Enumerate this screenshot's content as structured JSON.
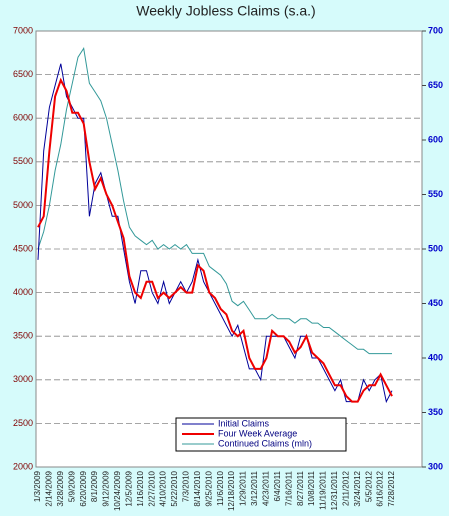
{
  "chart_data": {
    "type": "line",
    "title": "Weekly Jobless Claims (s.a.)",
    "categories": [
      "1/3/2009",
      null,
      "2/14/2009",
      null,
      "3/28/2009",
      null,
      "5/9/2009",
      null,
      "6/20/2009",
      null,
      "8/1/2009",
      null,
      "9/12/2009",
      null,
      "10/24/2009",
      null,
      "12/5/2009",
      null,
      "1/16/2010",
      null,
      "2/27/2010",
      null,
      "4/10/2010",
      null,
      "5/22/2010",
      null,
      "7/3/2010",
      null,
      "8/14/2010",
      null,
      "9/25/2010",
      null,
      "11/6/2010",
      null,
      "12/18/2010",
      null,
      "1/29/2011",
      null,
      "3/12/2011",
      null,
      "4/23/2011",
      null,
      "6/4/2011",
      null,
      "7/16/2011",
      null,
      "8/27/2011",
      null,
      "10/8/2011",
      null,
      "11/19/2011",
      null,
      "12/31/2011",
      null,
      "2/11/2012",
      null,
      "3/24/2012",
      null,
      "5/5/2012",
      null,
      "6/16/2012",
      null,
      "7/28/2012"
    ],
    "series": [
      {
        "name": "Initial Claims",
        "color": "#000099",
        "axis": "y2",
        "values": [
          490,
          590,
          630,
          650,
          670,
          640,
          630,
          620,
          620,
          530,
          560,
          570,
          550,
          530,
          530,
          500,
          470,
          450,
          480,
          480,
          460,
          450,
          470,
          450,
          460,
          470,
          460,
          470,
          490,
          470,
          460,
          450,
          440,
          430,
          420,
          430,
          410,
          390,
          390,
          380,
          420,
          420,
          420,
          420,
          410,
          400,
          420,
          420,
          400,
          400,
          390,
          380,
          370,
          380,
          360,
          360,
          360,
          380,
          370,
          380,
          385,
          360,
          370
        ]
      },
      {
        "name": "Four Week Average",
        "color": "#ee0000",
        "axis": "y2",
        "values": [
          520,
          530,
          590,
          640,
          655,
          645,
          625,
          625,
          615,
          580,
          555,
          565,
          550,
          540,
          525,
          510,
          475,
          460,
          455,
          470,
          470,
          455,
          460,
          455,
          460,
          465,
          460,
          460,
          485,
          480,
          460,
          455,
          445,
          440,
          425,
          420,
          425,
          400,
          390,
          390,
          400,
          425,
          420,
          420,
          415,
          405,
          410,
          420,
          405,
          400,
          395,
          385,
          375,
          375,
          365,
          360,
          360,
          370,
          375,
          375,
          385,
          375,
          365
        ]
      },
      {
        "name": "Continued Claims (mln)",
        "color": "#339999",
        "values": [
          4500,
          4700,
          5000,
          5400,
          5700,
          6100,
          6400,
          6700,
          6800,
          6400,
          6300,
          6200,
          6000,
          5700,
          5400,
          5050,
          4750,
          4650,
          4600,
          4550,
          4600,
          4500,
          4550,
          4500,
          4550,
          4500,
          4550,
          4450,
          4450,
          4450,
          4300,
          4250,
          4200,
          4100,
          3900,
          3850,
          3900,
          3800,
          3700,
          3700,
          3700,
          3750,
          3700,
          3700,
          3700,
          3650,
          3700,
          3700,
          3650,
          3650,
          3600,
          3600,
          3550,
          3500,
          3450,
          3400,
          3350,
          3350,
          3300,
          3300,
          3300,
          3300,
          3300
        ]
      }
    ],
    "ylim": [
      2000,
      7000
    ],
    "yticks": [
      2000,
      2500,
      3000,
      3500,
      4000,
      4500,
      5000,
      5500,
      6000,
      6500,
      7000
    ],
    "y2lim": [
      300,
      700
    ],
    "y2ticks": [
      300,
      350,
      400,
      450,
      500,
      550,
      600,
      650,
      700
    ],
    "grid": true,
    "legend": "lower center"
  }
}
